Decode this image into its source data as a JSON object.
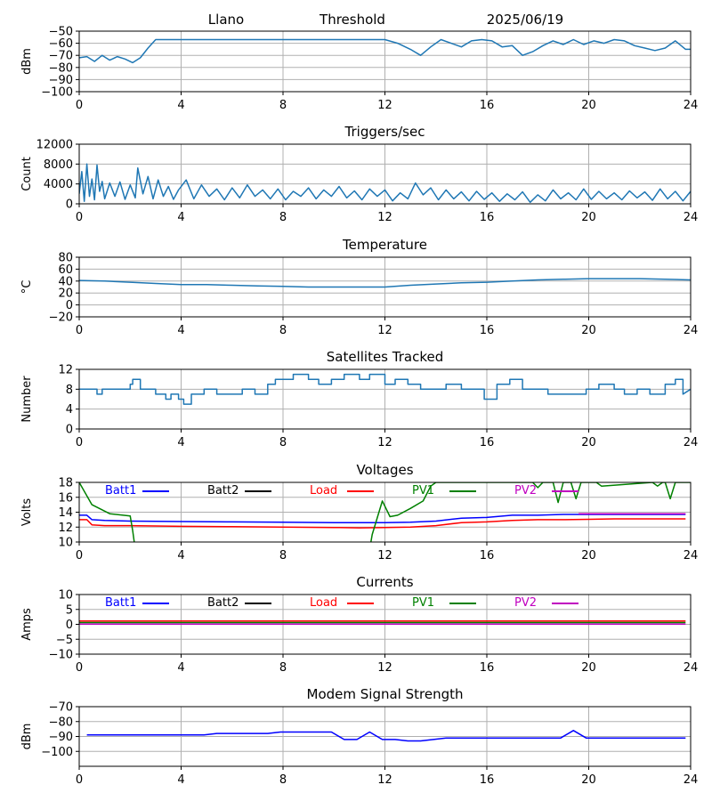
{
  "header": {
    "site": "Llano",
    "mode": "Threshold",
    "date": "2025/06/19"
  },
  "colors": {
    "default_series": "#1f77b4",
    "batt1": "#0000ff",
    "batt2": "#000000",
    "load": "#ff0000",
    "pv1": "#008000",
    "pv2": "#c000c0",
    "grid": "#b0b0b0"
  },
  "chart_data": [
    {
      "id": "threshold",
      "type": "line",
      "title": "",
      "ylabel": "dBm",
      "xlim": [
        0,
        24
      ],
      "ylim": [
        -100,
        -50
      ],
      "xticks": [
        0,
        4,
        8,
        12,
        16,
        20,
        24
      ],
      "yticks": [
        -100,
        -90,
        -80,
        -70,
        -60,
        -50
      ],
      "grid": true,
      "series": [
        {
          "color": "#1f77b4",
          "x": [
            0,
            0.3,
            0.6,
            0.9,
            1.2,
            1.5,
            1.8,
            2.1,
            2.4,
            2.7,
            3.0,
            3.5,
            4,
            5,
            6,
            7,
            8,
            9,
            10,
            11,
            12,
            12.5,
            13,
            13.4,
            13.8,
            14.2,
            14.6,
            15,
            15.4,
            15.8,
            16.2,
            16.6,
            17,
            17.4,
            17.8,
            18.2,
            18.6,
            19,
            19.4,
            19.8,
            20.2,
            20.6,
            21,
            21.4,
            21.8,
            22.2,
            22.6,
            23,
            23.4,
            23.8,
            24
          ],
          "y": [
            -72,
            -71,
            -75,
            -70,
            -74,
            -71,
            -73,
            -76,
            -72,
            -64,
            -57,
            -57,
            -57,
            -57,
            -57,
            -57,
            -57,
            -57,
            -57,
            -57,
            -57,
            -60,
            -65,
            -70,
            -63,
            -57,
            -60,
            -63,
            -58,
            -57,
            -58,
            -63,
            -62,
            -70,
            -67,
            -62,
            -58,
            -61,
            -57,
            -61,
            -58,
            -60,
            -57,
            -58,
            -62,
            -64,
            -66,
            -64,
            -58,
            -65,
            -65
          ]
        }
      ]
    },
    {
      "id": "triggers",
      "type": "line",
      "title": "Triggers/sec",
      "ylabel": "Count",
      "xlim": [
        0,
        24
      ],
      "ylim": [
        0,
        12000
      ],
      "xticks": [
        0,
        4,
        8,
        12,
        16,
        20,
        24
      ],
      "yticks": [
        0,
        4000,
        8000,
        12000
      ],
      "grid": true,
      "series": [
        {
          "color": "#1f77b4",
          "x": [
            0,
            0.1,
            0.2,
            0.3,
            0.4,
            0.5,
            0.6,
            0.7,
            0.8,
            0.9,
            1.0,
            1.2,
            1.4,
            1.6,
            1.8,
            2.0,
            2.2,
            2.3,
            2.5,
            2.7,
            2.9,
            3.1,
            3.3,
            3.5,
            3.7,
            3.9,
            4.2,
            4.5,
            4.8,
            5.1,
            5.4,
            5.7,
            6.0,
            6.3,
            6.6,
            6.9,
            7.2,
            7.5,
            7.8,
            8.1,
            8.4,
            8.7,
            9.0,
            9.3,
            9.6,
            9.9,
            10.2,
            10.5,
            10.8,
            11.1,
            11.4,
            11.7,
            12.0,
            12.3,
            12.6,
            12.9,
            13.2,
            13.5,
            13.8,
            14.1,
            14.4,
            14.7,
            15.0,
            15.3,
            15.6,
            15.9,
            16.2,
            16.5,
            16.8,
            17.1,
            17.4,
            17.7,
            18.0,
            18.3,
            18.6,
            18.9,
            19.2,
            19.5,
            19.8,
            20.1,
            20.4,
            20.7,
            21.0,
            21.3,
            21.6,
            21.9,
            22.2,
            22.5,
            22.8,
            23.1,
            23.4,
            23.7,
            24.0
          ],
          "y": [
            2000,
            6500,
            500,
            8000,
            1500,
            5000,
            800,
            7800,
            2500,
            4500,
            1000,
            4200,
            1500,
            4400,
            900,
            3800,
            1200,
            7200,
            2000,
            5500,
            1000,
            4800,
            1500,
            3500,
            900,
            2800,
            4800,
            1000,
            3800,
            1500,
            3000,
            800,
            3200,
            1200,
            3800,
            1500,
            2800,
            1000,
            3000,
            800,
            2500,
            1500,
            3200,
            1000,
            2800,
            1500,
            3500,
            1200,
            2600,
            800,
            3000,
            1500,
            2800,
            600,
            2200,
            1000,
            4200,
            1800,
            3200,
            800,
            2800,
            1000,
            2400,
            600,
            2500,
            900,
            2200,
            500,
            2000,
            800,
            2400,
            300,
            1800,
            600,
            2800,
            1000,
            2200,
            800,
            3000,
            900,
            2500,
            1000,
            2200,
            800,
            2600,
            1200,
            2400,
            700,
            3000,
            1000,
            2500,
            600,
            2500
          ]
        }
      ]
    },
    {
      "id": "temperature",
      "type": "line",
      "title": "Temperature",
      "ylabel": "°C",
      "xlim": [
        0,
        24
      ],
      "ylim": [
        -20,
        80
      ],
      "xticks": [
        0,
        4,
        8,
        12,
        16,
        20,
        24
      ],
      "yticks": [
        -20,
        0,
        20,
        40,
        60,
        80
      ],
      "grid": true,
      "series": [
        {
          "color": "#1f77b4",
          "x": [
            0,
            1,
            2,
            3,
            4,
            5,
            6,
            7,
            8,
            9,
            10,
            11,
            12,
            13,
            14,
            15,
            16,
            17,
            18,
            19,
            20,
            21,
            22,
            23,
            24
          ],
          "y": [
            41,
            40,
            38,
            36,
            34,
            34,
            33,
            32,
            31,
            30,
            30,
            30,
            30,
            33,
            35,
            37,
            38,
            40,
            42,
            43,
            44,
            44,
            44,
            43,
            42
          ]
        }
      ]
    },
    {
      "id": "satellites",
      "type": "line",
      "title": "Satellites Tracked",
      "ylabel": "Number",
      "xlim": [
        0,
        24
      ],
      "ylim": [
        0,
        12
      ],
      "xticks": [
        0,
        4,
        8,
        12,
        16,
        20,
        24
      ],
      "yticks": [
        0,
        4,
        8,
        12
      ],
      "grid": true,
      "series": [
        {
          "color": "#1f77b4",
          "x": [
            0,
            0.7,
            0.7,
            0.9,
            0.9,
            1.0,
            1.0,
            2.0,
            2.0,
            2.1,
            2.1,
            2.4,
            2.4,
            3.0,
            3.0,
            3.4,
            3.4,
            3.6,
            3.6,
            3.9,
            3.9,
            4.1,
            4.1,
            4.4,
            4.4,
            4.9,
            4.9,
            5.4,
            5.4,
            6.4,
            6.4,
            6.9,
            6.9,
            7.4,
            7.4,
            7.7,
            7.7,
            8.4,
            8.4,
            9.0,
            9.0,
            9.4,
            9.4,
            9.9,
            9.9,
            10.4,
            10.4,
            11.0,
            11.0,
            11.4,
            11.4,
            12.0,
            12.0,
            12.4,
            12.4,
            12.9,
            12.9,
            13.4,
            13.4,
            14.4,
            14.4,
            15.0,
            15.0,
            15.9,
            15.9,
            16.4,
            16.4,
            16.9,
            16.9,
            17.4,
            17.4,
            18.4,
            18.4,
            19.0,
            19.0,
            19.9,
            19.9,
            20.4,
            20.4,
            21.0,
            21.0,
            21.4,
            21.4,
            21.9,
            21.9,
            22.4,
            22.4,
            23.0,
            23.0,
            23.4,
            23.4,
            23.7,
            23.7,
            24
          ],
          "y": [
            8,
            8,
            7,
            7,
            8,
            8,
            8,
            8,
            9,
            9,
            10,
            10,
            8,
            8,
            7,
            7,
            6,
            6,
            7,
            7,
            6,
            6,
            5,
            5,
            7,
            7,
            8,
            8,
            7,
            7,
            8,
            8,
            7,
            7,
            9,
            9,
            10,
            10,
            11,
            11,
            10,
            10,
            9,
            9,
            10,
            10,
            11,
            11,
            10,
            10,
            11,
            11,
            9,
            9,
            10,
            10,
            9,
            9,
            8,
            8,
            9,
            9,
            8,
            8,
            6,
            6,
            9,
            9,
            10,
            10,
            8,
            8,
            7,
            7,
            7,
            7,
            8,
            8,
            9,
            9,
            8,
            8,
            7,
            7,
            8,
            8,
            7,
            7,
            9,
            9,
            10,
            10,
            7,
            8
          ]
        }
      ]
    },
    {
      "id": "voltages",
      "type": "line",
      "title": "Voltages",
      "ylabel": "Volts",
      "xlim": [
        0,
        24
      ],
      "ylim": [
        10,
        18
      ],
      "xticks": [
        0,
        4,
        8,
        12,
        16,
        20,
        24
      ],
      "yticks": [
        10,
        12,
        14,
        16,
        18
      ],
      "grid": true,
      "legend": [
        "Batt1",
        "Batt2",
        "Load",
        "PV1",
        "PV2"
      ],
      "series": [
        {
          "name": "Batt1",
          "color": "#0000ff",
          "x": [
            0,
            0.3,
            0.5,
            1,
            2,
            4,
            6,
            8,
            10,
            11,
            12,
            13,
            14,
            15,
            16,
            17,
            18,
            19,
            20,
            21,
            22,
            23,
            23.8
          ],
          "y": [
            13.6,
            13.6,
            13.0,
            12.9,
            12.8,
            12.75,
            12.7,
            12.65,
            12.6,
            12.6,
            12.6,
            12.65,
            12.8,
            13.2,
            13.3,
            13.6,
            13.6,
            13.7,
            13.7,
            13.7,
            13.7,
            13.7,
            13.7
          ]
        },
        {
          "name": "Load",
          "color": "#ff0000",
          "x": [
            0,
            0.3,
            0.5,
            1,
            2,
            4,
            6,
            8,
            10,
            11,
            12,
            13,
            14,
            15,
            16,
            17,
            18,
            19,
            20,
            21,
            22,
            23,
            23.8
          ],
          "y": [
            13.0,
            13.0,
            12.3,
            12.2,
            12.2,
            12.1,
            12.05,
            12.0,
            11.95,
            11.9,
            11.95,
            12.0,
            12.2,
            12.6,
            12.7,
            12.9,
            13.0,
            13.0,
            13.05,
            13.1,
            13.1,
            13.1,
            13.1
          ]
        },
        {
          "name": "PV1",
          "color": "#008000",
          "x": [
            0,
            0.5,
            1.2,
            2.0,
            2.1,
            2.2,
            11.4,
            11.5,
            11.9,
            12.2,
            12.5,
            13.0,
            13.5,
            13.8,
            14.0,
            17.8,
            18.0,
            18.2,
            18.6,
            18.8,
            19.0,
            19.3,
            19.5,
            19.7,
            20.3,
            20.5,
            22.5,
            22.7,
            22.9,
            23.0,
            23.2,
            23.4,
            24
          ],
          "y": [
            18,
            15,
            13.8,
            13.5,
            11.5,
            9,
            9,
            11,
            15.5,
            13.4,
            13.6,
            14.5,
            15.5,
            17.5,
            18,
            18,
            17.3,
            18,
            18,
            15.3,
            18,
            18,
            15.8,
            18,
            18,
            17.5,
            18,
            17.5,
            18,
            18,
            15.8,
            18,
            18
          ]
        },
        {
          "name": "PV2",
          "color": "#c000c0",
          "x": [
            19.6,
            23.8
          ],
          "y": [
            13.8,
            13.8
          ]
        }
      ]
    },
    {
      "id": "currents",
      "type": "line",
      "title": "Currents",
      "ylabel": "Amps",
      "xlim": [
        0,
        24
      ],
      "ylim": [
        -10,
        10
      ],
      "xticks": [
        0,
        4,
        8,
        12,
        16,
        20,
        24
      ],
      "yticks": [
        -10,
        -5,
        0,
        5,
        10
      ],
      "grid": true,
      "legend": [
        "Batt1",
        "Batt2",
        "Load",
        "PV1",
        "PV2"
      ],
      "series": [
        {
          "name": "Load",
          "color": "#ff0000",
          "x": [
            0,
            4,
            8,
            12,
            16,
            20,
            23.8
          ],
          "y": [
            1.1,
            1.1,
            1.1,
            1.1,
            1.1,
            1.1,
            1.1
          ]
        },
        {
          "name": "PV1",
          "color": "#008000",
          "x": [
            0,
            4,
            8,
            12,
            16,
            20,
            23.8
          ],
          "y": [
            0.6,
            0.6,
            0.6,
            0.6,
            0.6,
            0.6,
            0.6
          ]
        },
        {
          "name": "PV2",
          "color": "#c000c0",
          "x": [
            0,
            4,
            8,
            12,
            16,
            20,
            23.8
          ],
          "y": [
            0.1,
            0.1,
            0.1,
            0.1,
            0.1,
            0.1,
            0.1
          ]
        }
      ]
    },
    {
      "id": "modem",
      "type": "line",
      "title": "Modem Signal Strength",
      "ylabel": "dBm",
      "xlim": [
        0,
        24
      ],
      "ylim": [
        -110,
        -70
      ],
      "xticks": [
        0,
        4,
        8,
        12,
        16,
        20,
        24
      ],
      "yticks": [
        -100,
        -90,
        -80,
        -70
      ],
      "grid": true,
      "series": [
        {
          "color": "#0000ff",
          "x": [
            0.3,
            1,
            2,
            3,
            4,
            4.9,
            5.4,
            6,
            7,
            7.4,
            7.9,
            8.5,
            9,
            9.9,
            10.4,
            10.9,
            11.4,
            11.9,
            12.4,
            12.9,
            13.4,
            13.9,
            14.4,
            15,
            16,
            17,
            18,
            18.9,
            19.4,
            19.9,
            20.4,
            21,
            22,
            23,
            23.8
          ],
          "y": [
            -89,
            -89,
            -89,
            -89,
            -89,
            -89,
            -88,
            -88,
            -88,
            -88,
            -87,
            -87,
            -87,
            -87,
            -92,
            -92,
            -87,
            -92,
            -92,
            -93,
            -93,
            -92,
            -91,
            -91,
            -91,
            -91,
            -91,
            -91,
            -86,
            -91,
            -91,
            -91,
            -91,
            -91,
            -91
          ]
        }
      ]
    }
  ]
}
